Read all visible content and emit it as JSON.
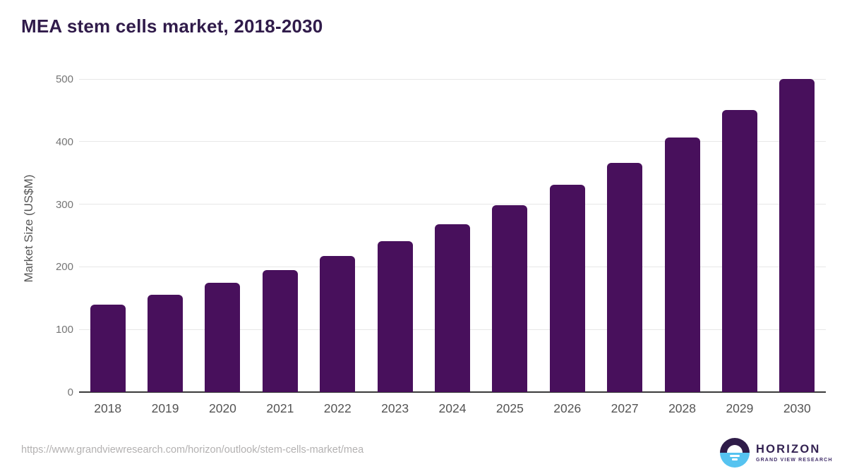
{
  "title": "MEA stem cells market, 2018-2030",
  "footer": {
    "source_url": "https://www.grandviewresearch.com/horizon/outlook/stem-cells-market/mea",
    "logo_name": "HORIZON",
    "logo_subtitle": "GRAND VIEW RESEARCH"
  },
  "colors": {
    "bar": "#48105C",
    "title_text": "#301B4A",
    "gridline": "#E7E7E7",
    "axis_line": "#3A3A3A",
    "y_tick_label": "#757575",
    "x_tick_label": "#545454",
    "axis_title": "#565656",
    "url_text": "#B3B1B1",
    "logo_purple_dark": "#2F1C49",
    "logo_blue": "#56C3F0",
    "logo_text_purple": "#332252"
  },
  "chart_data": {
    "type": "bar",
    "title": "MEA stem cells market, 2018-2030",
    "categories": [
      "2018",
      "2019",
      "2020",
      "2021",
      "2022",
      "2023",
      "2024",
      "2025",
      "2026",
      "2027",
      "2028",
      "2029",
      "2030"
    ],
    "values": [
      140,
      155,
      174,
      195,
      217,
      241,
      268,
      298,
      331,
      366,
      407,
      450,
      500
    ],
    "xlabel": "",
    "ylabel": "Market Size (US$M)",
    "ylim": [
      0,
      500
    ],
    "yticks": [
      0,
      100,
      200,
      300,
      400,
      500
    ],
    "grid": "horizontal-only",
    "legend": "none",
    "bar_color": "#48105C"
  }
}
